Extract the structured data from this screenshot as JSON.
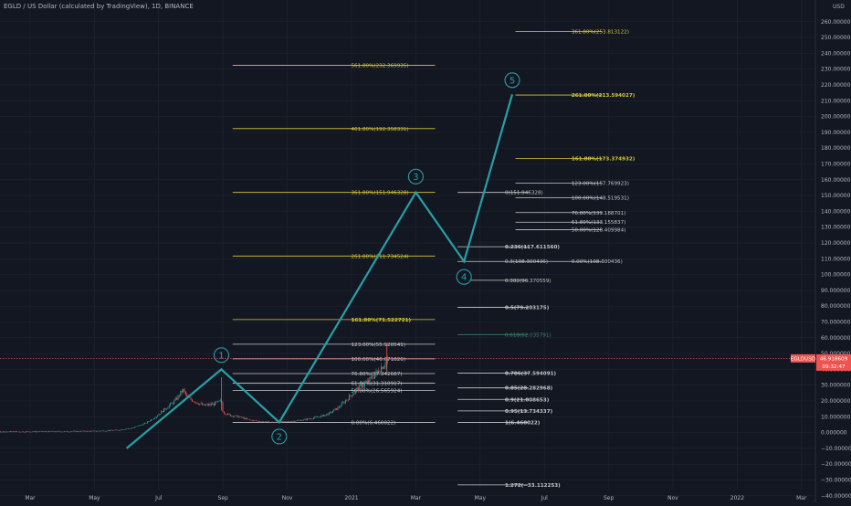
{
  "title": "EGLD / US Dollar (calculated by TradingView), 1D, BINANCE",
  "colors": {
    "background": "#131722",
    "grid": "#1f2430",
    "axis_text": "#b2b5be",
    "fib_yellow": "#d9c734",
    "fib_white": "#c8c8c8",
    "fib_green": "#3a8f6f",
    "wave": "#26a0a7",
    "candle_up": "#26a69a",
    "candle_down": "#ef5350",
    "price_tag": "#ef5350"
  },
  "chart_data": {
    "type": "candlestick",
    "currency": "USD",
    "ylim": [
      -43,
      272
    ],
    "y_ticks": [
      -40,
      -30,
      -20,
      -10,
      0,
      10,
      20,
      30,
      40,
      50,
      60,
      70,
      80,
      90,
      100,
      110,
      120,
      130,
      140,
      150,
      160,
      170,
      180,
      190,
      200,
      210,
      220,
      230,
      240,
      250,
      260
    ],
    "y_tick_labels": [
      "−40.000000",
      "−30.000000",
      "−20.000000",
      "−10.000000",
      "0.000000",
      "10.000000",
      "20.000000",
      "30.000000",
      "40.000000",
      "50.000000",
      "60.000000",
      "70.000000",
      "80.000000",
      "90.000000",
      "100.000000",
      "110.000000",
      "120.000000",
      "130.000000",
      "140.000000",
      "150.000000",
      "160.000000",
      "170.000000",
      "180.000000",
      "190.000000",
      "200.000000",
      "210.000000",
      "220.000000",
      "230.000000",
      "240.000000",
      "250.000000",
      "260.000000"
    ],
    "x_ticks": [
      "Mar",
      "May",
      "Jul",
      "Sep",
      "Nov",
      "2021",
      "Mar",
      "May",
      "Jul",
      "Sep",
      "Nov",
      "2022",
      "Mar"
    ],
    "symbol_tag": "EGLDUSD",
    "last_price": "46.918609",
    "countdown": "09:32:47",
    "last_price_value": 46.918609,
    "price_series": [
      {
        "m": -2,
        "v": 0.5
      },
      {
        "m": 0,
        "v": 0.6
      },
      {
        "m": 1,
        "v": 0.7
      },
      {
        "m": 2,
        "v": 0.9
      },
      {
        "m": 2.7,
        "v": 1.5
      },
      {
        "m": 3.2,
        "v": 3
      },
      {
        "m": 3.6,
        "v": 6
      },
      {
        "m": 3.9,
        "v": 10
      },
      {
        "m": 4.2,
        "v": 15
      },
      {
        "m": 4.5,
        "v": 20
      },
      {
        "m": 4.75,
        "v": 27
      },
      {
        "m": 4.9,
        "v": 22
      },
      {
        "m": 5.1,
        "v": 20
      },
      {
        "m": 5.4,
        "v": 17
      },
      {
        "m": 5.7,
        "v": 18
      },
      {
        "m": 5.95,
        "v": 20
      },
      {
        "m": 6.0,
        "v": 13
      },
      {
        "m": 6.2,
        "v": 11
      },
      {
        "m": 6.5,
        "v": 10
      },
      {
        "m": 6.8,
        "v": 8
      },
      {
        "m": 7.2,
        "v": 7
      },
      {
        "m": 7.6,
        "v": 6.5
      },
      {
        "m": 8.0,
        "v": 7
      },
      {
        "m": 8.5,
        "v": 8
      },
      {
        "m": 9.0,
        "v": 10
      },
      {
        "m": 9.3,
        "v": 12
      },
      {
        "m": 9.6,
        "v": 16
      },
      {
        "m": 9.9,
        "v": 22
      },
      {
        "m": 10.2,
        "v": 28
      },
      {
        "m": 10.5,
        "v": 32
      },
      {
        "m": 10.7,
        "v": 36
      },
      {
        "m": 10.85,
        "v": 40
      },
      {
        "m": 11.0,
        "v": 43
      },
      {
        "m": 11.15,
        "v": 47
      }
    ],
    "spikes": [
      {
        "m": 5.95,
        "lo": 14,
        "hi": 35
      },
      {
        "m": 11.1,
        "lo": 38,
        "hi": 56
      }
    ],
    "wave_path": [
      {
        "m": 3.0,
        "v": -10
      },
      {
        "m": 5.95,
        "v": 40
      },
      {
        "m": 7.75,
        "v": 6.5
      },
      {
        "m": 12.0,
        "v": 152
      },
      {
        "m": 13.5,
        "v": 108.3
      },
      {
        "m": 15.0,
        "v": 214
      }
    ],
    "wave_labels": [
      {
        "label": "1",
        "m": 5.95,
        "v": 49
      },
      {
        "label": "2",
        "m": 7.75,
        "v": -2.5
      },
      {
        "label": "3",
        "m": 12.0,
        "v": 162
      },
      {
        "label": "4",
        "m": 13.5,
        "v": 98.5
      },
      {
        "label": "5",
        "m": 15.0,
        "v": 223
      }
    ],
    "fib_levels": [
      {
        "label": "561.80%(232.369935)",
        "value": 232.37,
        "x0": 6.3,
        "x1": 12.6,
        "color": "yellow",
        "bold": false
      },
      {
        "label": "461.80%(192.358331)",
        "value": 192.36,
        "x0": 6.3,
        "x1": 12.6,
        "color": "yellow",
        "bold": false
      },
      {
        "label": "361.80%(151.946328)",
        "value": 151.95,
        "x0": 6.3,
        "x1": 12.6,
        "color": "yellow",
        "bold": false
      },
      {
        "label": "261.80%(111.734524)",
        "value": 111.73,
        "x0": 6.3,
        "x1": 12.6,
        "color": "yellow",
        "bold": false
      },
      {
        "label": "161.80%(71.522721)",
        "value": 71.52,
        "x0": 6.3,
        "x1": 12.6,
        "color": "yellow",
        "bold": true
      },
      {
        "label": "123.00%(55.920541)",
        "value": 55.92,
        "x0": 6.3,
        "x1": 12.6,
        "color": "white",
        "bold": false
      },
      {
        "label": "100.00%(46.671826)",
        "value": 46.67,
        "x0": 6.3,
        "x1": 12.6,
        "color": "white",
        "bold": false
      },
      {
        "label": "76.80%(37.342687)",
        "value": 37.34,
        "x0": 6.3,
        "x1": 12.6,
        "color": "white",
        "bold": false
      },
      {
        "label": "61.80%(31.310917)",
        "value": 31.31,
        "x0": 6.3,
        "x1": 12.6,
        "color": "white",
        "bold": false
      },
      {
        "label": "50.00%(26.565924)",
        "value": 26.57,
        "x0": 6.3,
        "x1": 12.6,
        "color": "white",
        "bold": false
      },
      {
        "label": "0.00%(6.460022)",
        "value": 6.46,
        "x0": 6.3,
        "x1": 12.6,
        "color": "white",
        "bold": false
      },
      {
        "label": "0(151.946328)",
        "value": 151.95,
        "x0": 13.3,
        "x1": 15.5,
        "color": "white",
        "bold": false
      },
      {
        "label": "0.236(117.611560)",
        "value": 117.61,
        "x0": 13.3,
        "x1": 15.5,
        "color": "white",
        "bold": true
      },
      {
        "label": "0.3(108.300436)",
        "value": 108.3,
        "x0": 13.3,
        "x1": 15.5,
        "color": "white",
        "bold": false
      },
      {
        "label": "0.382(96.370559)",
        "value": 96.37,
        "x0": 13.3,
        "x1": 15.5,
        "color": "white",
        "bold": false
      },
      {
        "label": "0.5(79.203175)",
        "value": 79.2,
        "x0": 13.3,
        "x1": 15.5,
        "color": "white",
        "bold": true
      },
      {
        "label": "0.618(62.035791)",
        "value": 62.04,
        "x0": 13.3,
        "x1": 15.5,
        "color": "green",
        "bold": false
      },
      {
        "label": "0.786(37.594091)",
        "value": 37.59,
        "x0": 13.3,
        "x1": 15.5,
        "color": "white",
        "bold": true
      },
      {
        "label": "0.85(28.282968)",
        "value": 28.28,
        "x0": 13.3,
        "x1": 15.5,
        "color": "white",
        "bold": true
      },
      {
        "label": "0.9(21.008653)",
        "value": 21.01,
        "x0": 13.3,
        "x1": 15.5,
        "color": "white",
        "bold": true
      },
      {
        "label": "0.95(13.734337)",
        "value": 13.73,
        "x0": 13.3,
        "x1": 15.5,
        "color": "white",
        "bold": true
      },
      {
        "label": "1(6.460022)",
        "value": 6.46,
        "x0": 13.3,
        "x1": 15.5,
        "color": "white",
        "bold": true
      },
      {
        "label": "1.272(−33.112253)",
        "value": -33.11,
        "x0": 13.3,
        "x1": 15.5,
        "color": "white",
        "bold": true
      },
      {
        "label": "361.80%(253.813122)",
        "value": 253.81,
        "x0": 15.1,
        "x1": 17.8,
        "color": "yellow",
        "bold": false
      },
      {
        "label": "261.80%(213.594027)",
        "value": 213.59,
        "x0": 15.1,
        "x1": 17.8,
        "color": "yellow",
        "bold": true
      },
      {
        "label": "161.80%(173.374932)",
        "value": 173.37,
        "x0": 15.1,
        "x1": 17.8,
        "color": "yellow",
        "bold": true
      },
      {
        "label": "123.00%(157.769923)",
        "value": 157.77,
        "x0": 15.1,
        "x1": 17.8,
        "color": "white",
        "bold": false
      },
      {
        "label": "100.00%(148.519531)",
        "value": 148.52,
        "x0": 15.1,
        "x1": 17.8,
        "color": "white",
        "bold": false
      },
      {
        "label": "76.80%(139.188701)",
        "value": 139.19,
        "x0": 15.1,
        "x1": 17.8,
        "color": "white",
        "bold": false
      },
      {
        "label": "61.80%(133.155837)",
        "value": 133.16,
        "x0": 15.1,
        "x1": 17.8,
        "color": "white",
        "bold": false
      },
      {
        "label": "50.00%(128.409984)",
        "value": 128.41,
        "x0": 15.1,
        "x1": 17.8,
        "color": "white",
        "bold": false
      },
      {
        "label": "0.00%(108.300436)",
        "value": 108.3,
        "x0": 15.1,
        "x1": 17.8,
        "color": "white",
        "bold": false
      }
    ]
  }
}
